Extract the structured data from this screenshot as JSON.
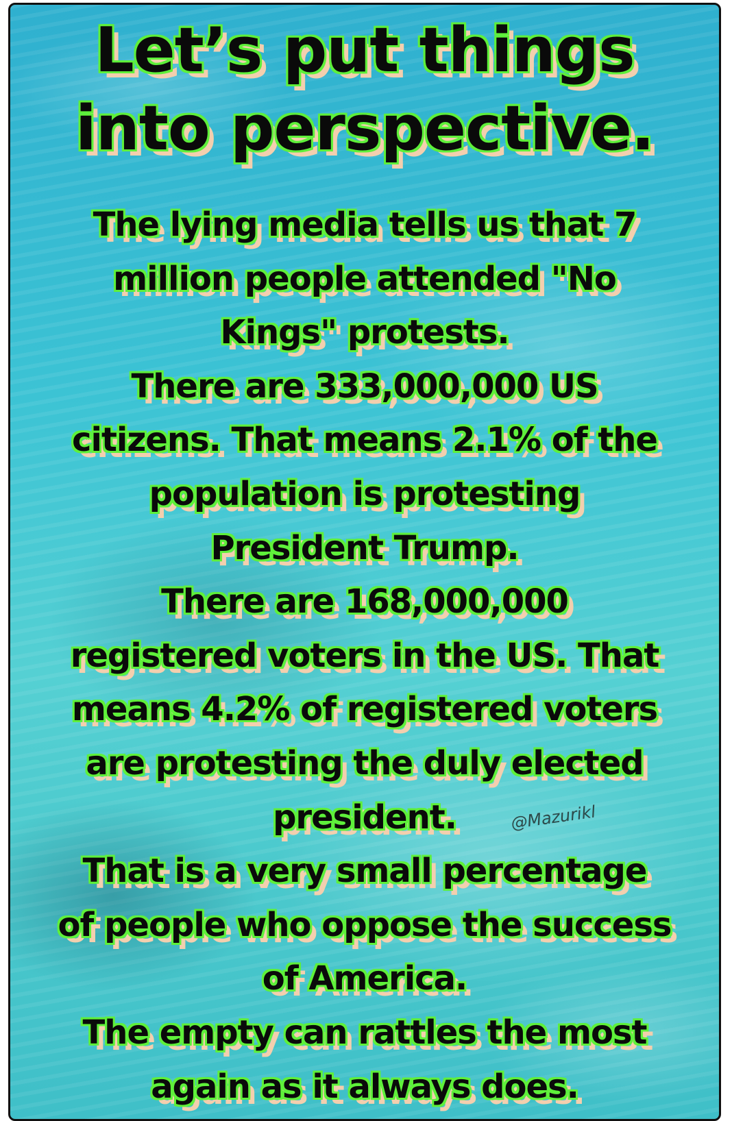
{
  "title_lines": [
    "Let’s put things",
    "into perspective."
  ],
  "body_lines": [
    "The lying media tells us that 7",
    "million people attended \"No",
    "Kings\" protests.",
    "There are 333,000,000 US",
    "citizens. That means 2.1% of the",
    "population is protesting",
    "President Trump.",
    "There are 168,000,000",
    "registered voters in the US. That",
    "means 4.2% of registered voters",
    "are protesting the duly elected",
    "president.",
    "That is a very small percentage",
    "of people who oppose the success",
    "of America.",
    "The empty can rattles the most",
    "again as it always does."
  ],
  "watermark": "@Mazurikl",
  "colors": {
    "text": "#0a0a0a",
    "outline": "#5ef03a",
    "shadow": "#f3cfae",
    "water": "#3cc3d4"
  }
}
